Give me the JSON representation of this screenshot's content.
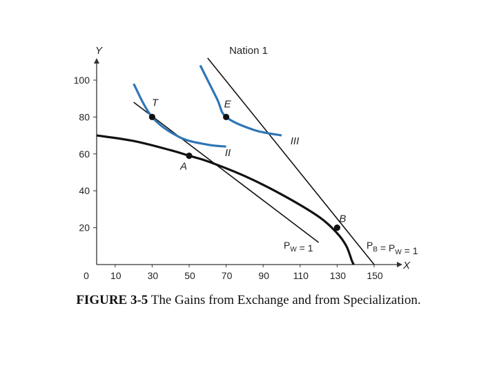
{
  "figure": {
    "number": "FIGURE 3-5",
    "caption": "The Gains from Exchange and from Specialization."
  },
  "chart_data": {
    "type": "line",
    "title": "Nation 1",
    "xlabel": "X",
    "ylabel": "Y",
    "xlim": [
      0,
      155
    ],
    "ylim": [
      0,
      110
    ],
    "x_ticks": [
      "0",
      "10",
      "30",
      "50",
      "70",
      "90",
      "110",
      "130",
      "150"
    ],
    "y_ticks": [
      "20",
      "40",
      "60",
      "80",
      "100"
    ],
    "colors": {
      "frontier": "#111111",
      "indifference": "#2e75b6",
      "price_line": "#111111"
    },
    "series": [
      {
        "kind": "production_frontier",
        "points": [
          [
            0,
            70
          ],
          [
            20,
            67
          ],
          [
            40,
            62
          ],
          [
            50,
            59
          ],
          [
            60,
            56
          ],
          [
            80,
            48
          ],
          [
            100,
            38
          ],
          [
            120,
            26
          ],
          [
            130,
            17
          ],
          [
            135,
            10
          ],
          [
            138,
            2
          ],
          [
            139,
            0
          ]
        ]
      },
      {
        "kind": "price_line",
        "name": "P_W = 1",
        "points": [
          [
            20,
            88
          ],
          [
            120,
            12
          ]
        ]
      },
      {
        "kind": "price_line",
        "name": "P_B = P_W = 1",
        "points": [
          [
            60,
            112
          ],
          [
            150,
            0
          ]
        ]
      },
      {
        "kind": "indifference",
        "name": "II",
        "points": [
          [
            20,
            98
          ],
          [
            30,
            80
          ],
          [
            45,
            69
          ],
          [
            60,
            65
          ],
          [
            70,
            64
          ]
        ]
      },
      {
        "kind": "indifference",
        "name": "III",
        "points": [
          [
            56,
            108
          ],
          [
            65,
            90
          ],
          [
            70,
            80
          ],
          [
            85,
            73
          ],
          [
            100,
            70
          ]
        ]
      }
    ],
    "points": [
      {
        "label": "T",
        "x": 30,
        "y": 80
      },
      {
        "label": "A",
        "x": 50,
        "y": 59
      },
      {
        "label": "E",
        "x": 70,
        "y": 80
      },
      {
        "label": "B",
        "x": 130,
        "y": 20
      }
    ],
    "line_labels": [
      {
        "text_main": "P",
        "sub": "W",
        "text_rest": " = 1"
      },
      {
        "text_main": "P",
        "sub": "B",
        "text_mid": " = P",
        "sub2": "W",
        "text_rest": " = 1"
      }
    ],
    "curve_labels": [
      "II",
      "III"
    ]
  }
}
